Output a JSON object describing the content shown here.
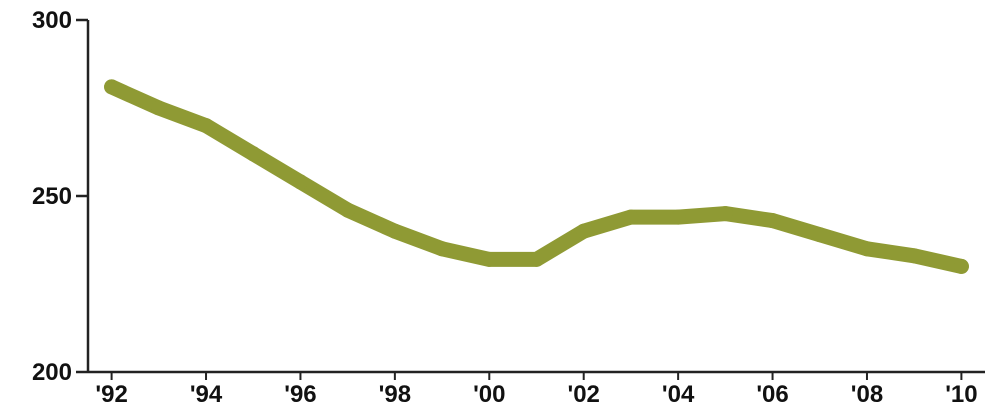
{
  "chart_data": {
    "type": "line",
    "title": "",
    "xlabel": "",
    "ylabel": "",
    "x": [
      1992,
      1993,
      1994,
      1995,
      1996,
      1997,
      1998,
      1999,
      2000,
      2001,
      2002,
      2003,
      2004,
      2005,
      2006,
      2007,
      2008,
      2009,
      2010
    ],
    "x_tick_values": [
      1992,
      1994,
      1996,
      1998,
      2000,
      2002,
      2004,
      2006,
      2008,
      2010
    ],
    "x_tick_labels": [
      "'92",
      "'94",
      "'96",
      "'98",
      "'00",
      "'02",
      "'04",
      "'06",
      "'08",
      "'10"
    ],
    "y_ticks": [
      200,
      250,
      300
    ],
    "ylim": [
      200,
      300
    ],
    "xlim": [
      1991.5,
      2010.5
    ],
    "grid": false,
    "series": [
      {
        "values": [
          281,
          275,
          270,
          262,
          254,
          246,
          240,
          235,
          232,
          232,
          240,
          244,
          244,
          245,
          243,
          239,
          235,
          233,
          230
        ],
        "color": "#8f9a34"
      }
    ]
  }
}
